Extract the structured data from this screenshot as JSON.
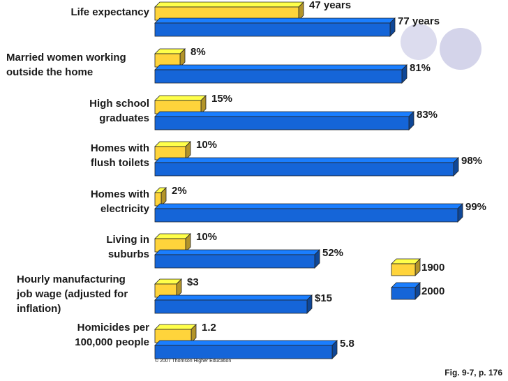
{
  "chart_data": {
    "type": "bar",
    "orientation": "horizontal",
    "categories": [
      [
        "Life expectancy"
      ],
      [
        "Married women working",
        "outside the home"
      ],
      [
        "High school",
        "graduates"
      ],
      [
        "Homes with",
        "flush toilets"
      ],
      [
        "Homes with",
        "electricity"
      ],
      [
        "Living in",
        "suburbs"
      ],
      [
        "Hourly manufacturing",
        "job wage (adjusted for",
        "inflation)"
      ],
      [
        "Homicides per",
        "100,000 people"
      ]
    ],
    "series": [
      {
        "name": "1900",
        "color": "#ffd43b",
        "values": [
          47,
          8,
          15,
          10,
          2,
          10,
          3,
          1.2
        ],
        "labels": [
          "47 years",
          "8%",
          "15%",
          "10%",
          "2%",
          "10%",
          "$3",
          "1.2"
        ]
      },
      {
        "name": "2000",
        "color": "#1565d8",
        "values": [
          77,
          81,
          83,
          98,
          99,
          52,
          15,
          5.8
        ],
        "labels": [
          "77 years",
          "81%",
          "83%",
          "98%",
          "99%",
          "52%",
          "$15",
          "5.8"
        ]
      }
    ],
    "legend_position": "bottom-right",
    "grid": false
  },
  "credit": "© 2007 Thomson Higher Education",
  "figure_ref": "Fig. 9-7, p. 176"
}
